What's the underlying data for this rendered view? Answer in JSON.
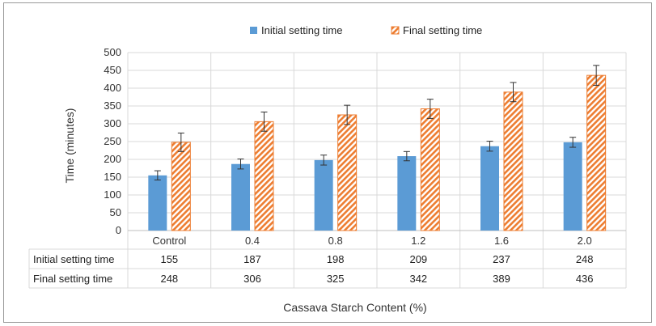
{
  "chart_data": {
    "type": "bar",
    "categories": [
      "Control",
      "0.4",
      "0.8",
      "1.2",
      "1.6",
      "2.0"
    ],
    "series": [
      {
        "name": "Initial setting time",
        "values": [
          155,
          187,
          198,
          209,
          237,
          248
        ],
        "errors": [
          13,
          14,
          14,
          13,
          14,
          14
        ],
        "color": "#5b9bd5",
        "pattern": "solid"
      },
      {
        "name": "Final setting time",
        "values": [
          248,
          306,
          325,
          342,
          389,
          436
        ],
        "errors": [
          26,
          27,
          27,
          27,
          27,
          28
        ],
        "color": "#ed7d31",
        "pattern": "diagonal-stripes"
      }
    ],
    "xlabel": "Cassava Starch Content (%)",
    "ylabel": "Time (minutes)",
    "ylim": [
      0,
      500
    ],
    "yticks": [
      0,
      50,
      100,
      150,
      200,
      250,
      300,
      350,
      400,
      450,
      500
    ],
    "grid": true,
    "legend": "top-center",
    "data_table": true
  }
}
